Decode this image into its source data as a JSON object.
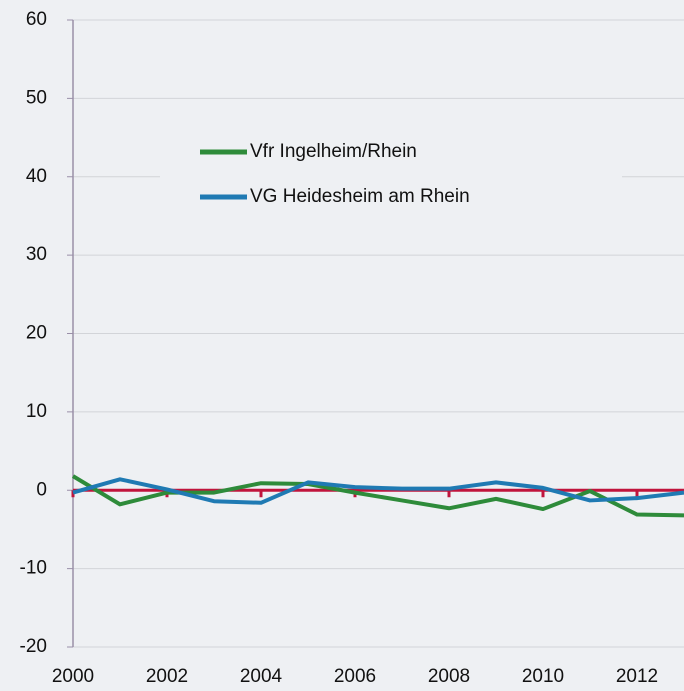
{
  "chart_data": {
    "type": "line",
    "x": [
      2000,
      2001,
      2002,
      2003,
      2004,
      2005,
      2006,
      2007,
      2008,
      2009,
      2010,
      2011,
      2012,
      2013
    ],
    "series": [
      {
        "name": "Vfr Ingelheim/Rhein",
        "color": "#2e8b3a",
        "values": [
          1.8,
          -1.8,
          -0.3,
          -0.3,
          0.9,
          0.8,
          -0.3,
          -1.3,
          -2.3,
          -1.1,
          -2.4,
          -0.1,
          -3.1,
          -3.2
        ]
      },
      {
        "name": "VG Heidesheim am Rhein",
        "color": "#1f7ab3",
        "values": [
          -0.3,
          1.4,
          0.1,
          -1.4,
          -1.6,
          1.0,
          0.4,
          0.2,
          0.2,
          1.0,
          0.3,
          -1.3,
          -1.0,
          -0.3
        ]
      }
    ],
    "xlim": [
      2000,
      2013
    ],
    "xticks": [
      2000,
      2002,
      2004,
      2006,
      2008,
      2010,
      2012
    ],
    "ylim": [
      -20,
      60
    ],
    "yticks": [
      -20,
      -10,
      0,
      10,
      20,
      30,
      40,
      50,
      60
    ],
    "grid": true,
    "zero_line_color": "#c0143c"
  }
}
